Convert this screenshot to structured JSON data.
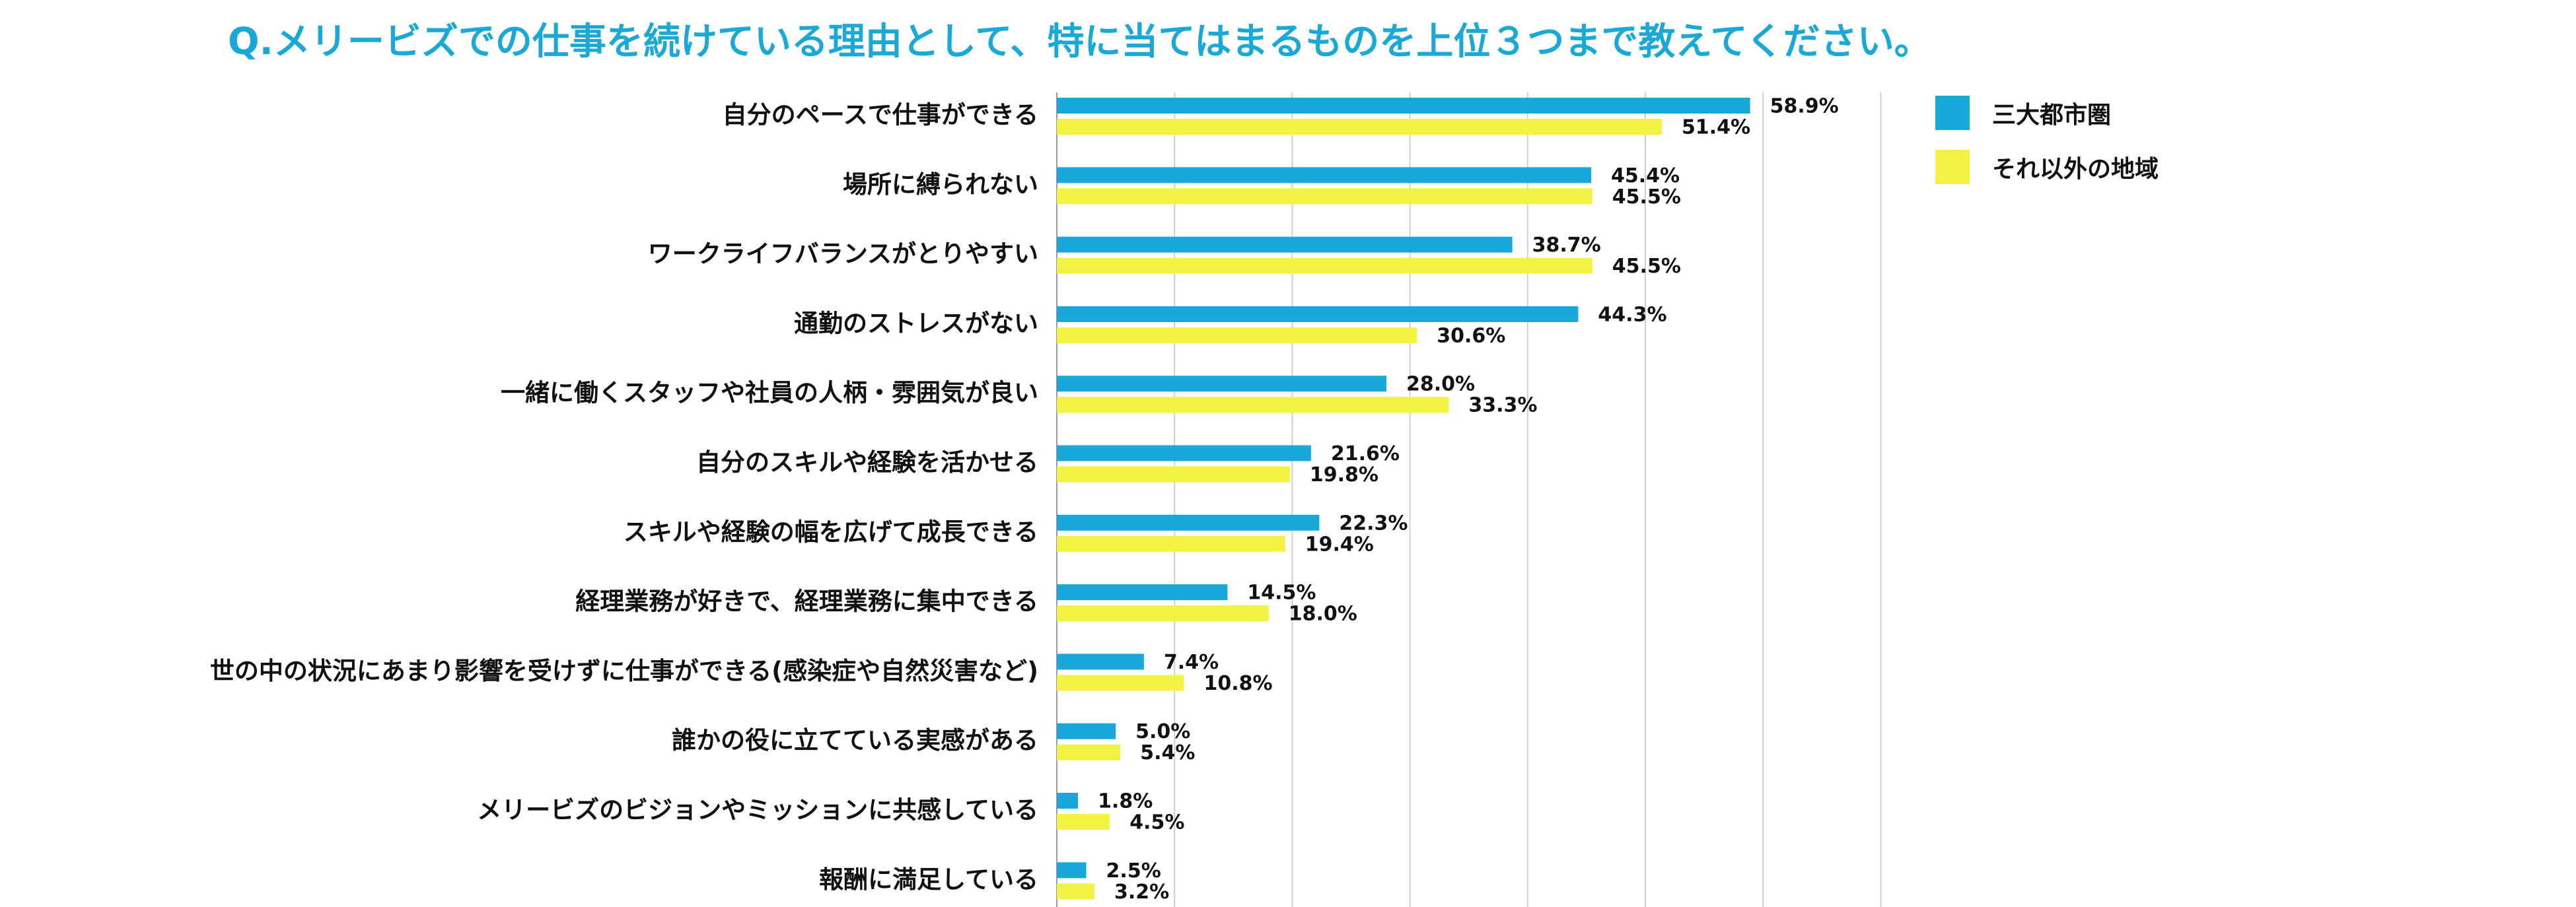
{
  "colors": {
    "title": "#1aa9d6",
    "series1": "#19a8d9",
    "series2": "#f3f243",
    "grid": "#d0d0d0",
    "text": "#111111"
  },
  "title": "Q.メリービズでの仕事を続けている理由として、特に当てはまるものを上位３つまで教えてください。",
  "chart_data": {
    "type": "bar",
    "orientation": "horizontal",
    "title": "Q.メリービズでの仕事を続けている理由として、特に当てはまるものを上位３つまで教えてください。",
    "xlim": [
      0,
      70
    ],
    "grid": true,
    "legend_position": "top-right",
    "categories": [
      "自分のペースで仕事ができる",
      "場所に縛られない",
      "ワークライフバランスがとりやすい",
      "通勤のストレスがない",
      "一緒に働くスタッフや社員の人柄・雰囲気が良い",
      "自分のスキルや経験を活かせる",
      "スキルや経験の幅を広げて成長できる",
      "経理業務が好きで、経理業務に集中できる",
      "世の中の状況にあまり影響を受けずに仕事ができる(感染症や自然災害など)",
      "誰かの役に立てている実感がある",
      "メリービズのビジョンやミッションに共感している",
      "報酬に満足している"
    ],
    "series": [
      {
        "name": "三大都市圏",
        "values": [
          58.9,
          45.4,
          38.7,
          44.3,
          28.0,
          21.6,
          22.3,
          14.5,
          7.4,
          5.0,
          1.8,
          2.5
        ],
        "labels": [
          "58.9%",
          "45.4%",
          "38.7%",
          "44.3%",
          "28.0%",
          "21.6%",
          "22.3%",
          "14.5%",
          "7.4%",
          "5.0%",
          "1.8%",
          "2.5%"
        ]
      },
      {
        "name": "それ以外の地域",
        "values": [
          51.4,
          45.5,
          45.5,
          30.6,
          33.3,
          19.8,
          19.4,
          18.0,
          10.8,
          5.4,
          4.5,
          3.2
        ],
        "labels": [
          "51.4%",
          "45.5%",
          "45.5%",
          "30.6%",
          "33.3%",
          "19.8%",
          "19.4%",
          "18.0%",
          "10.8%",
          "5.4%",
          "4.5%",
          "3.2%"
        ]
      }
    ]
  }
}
